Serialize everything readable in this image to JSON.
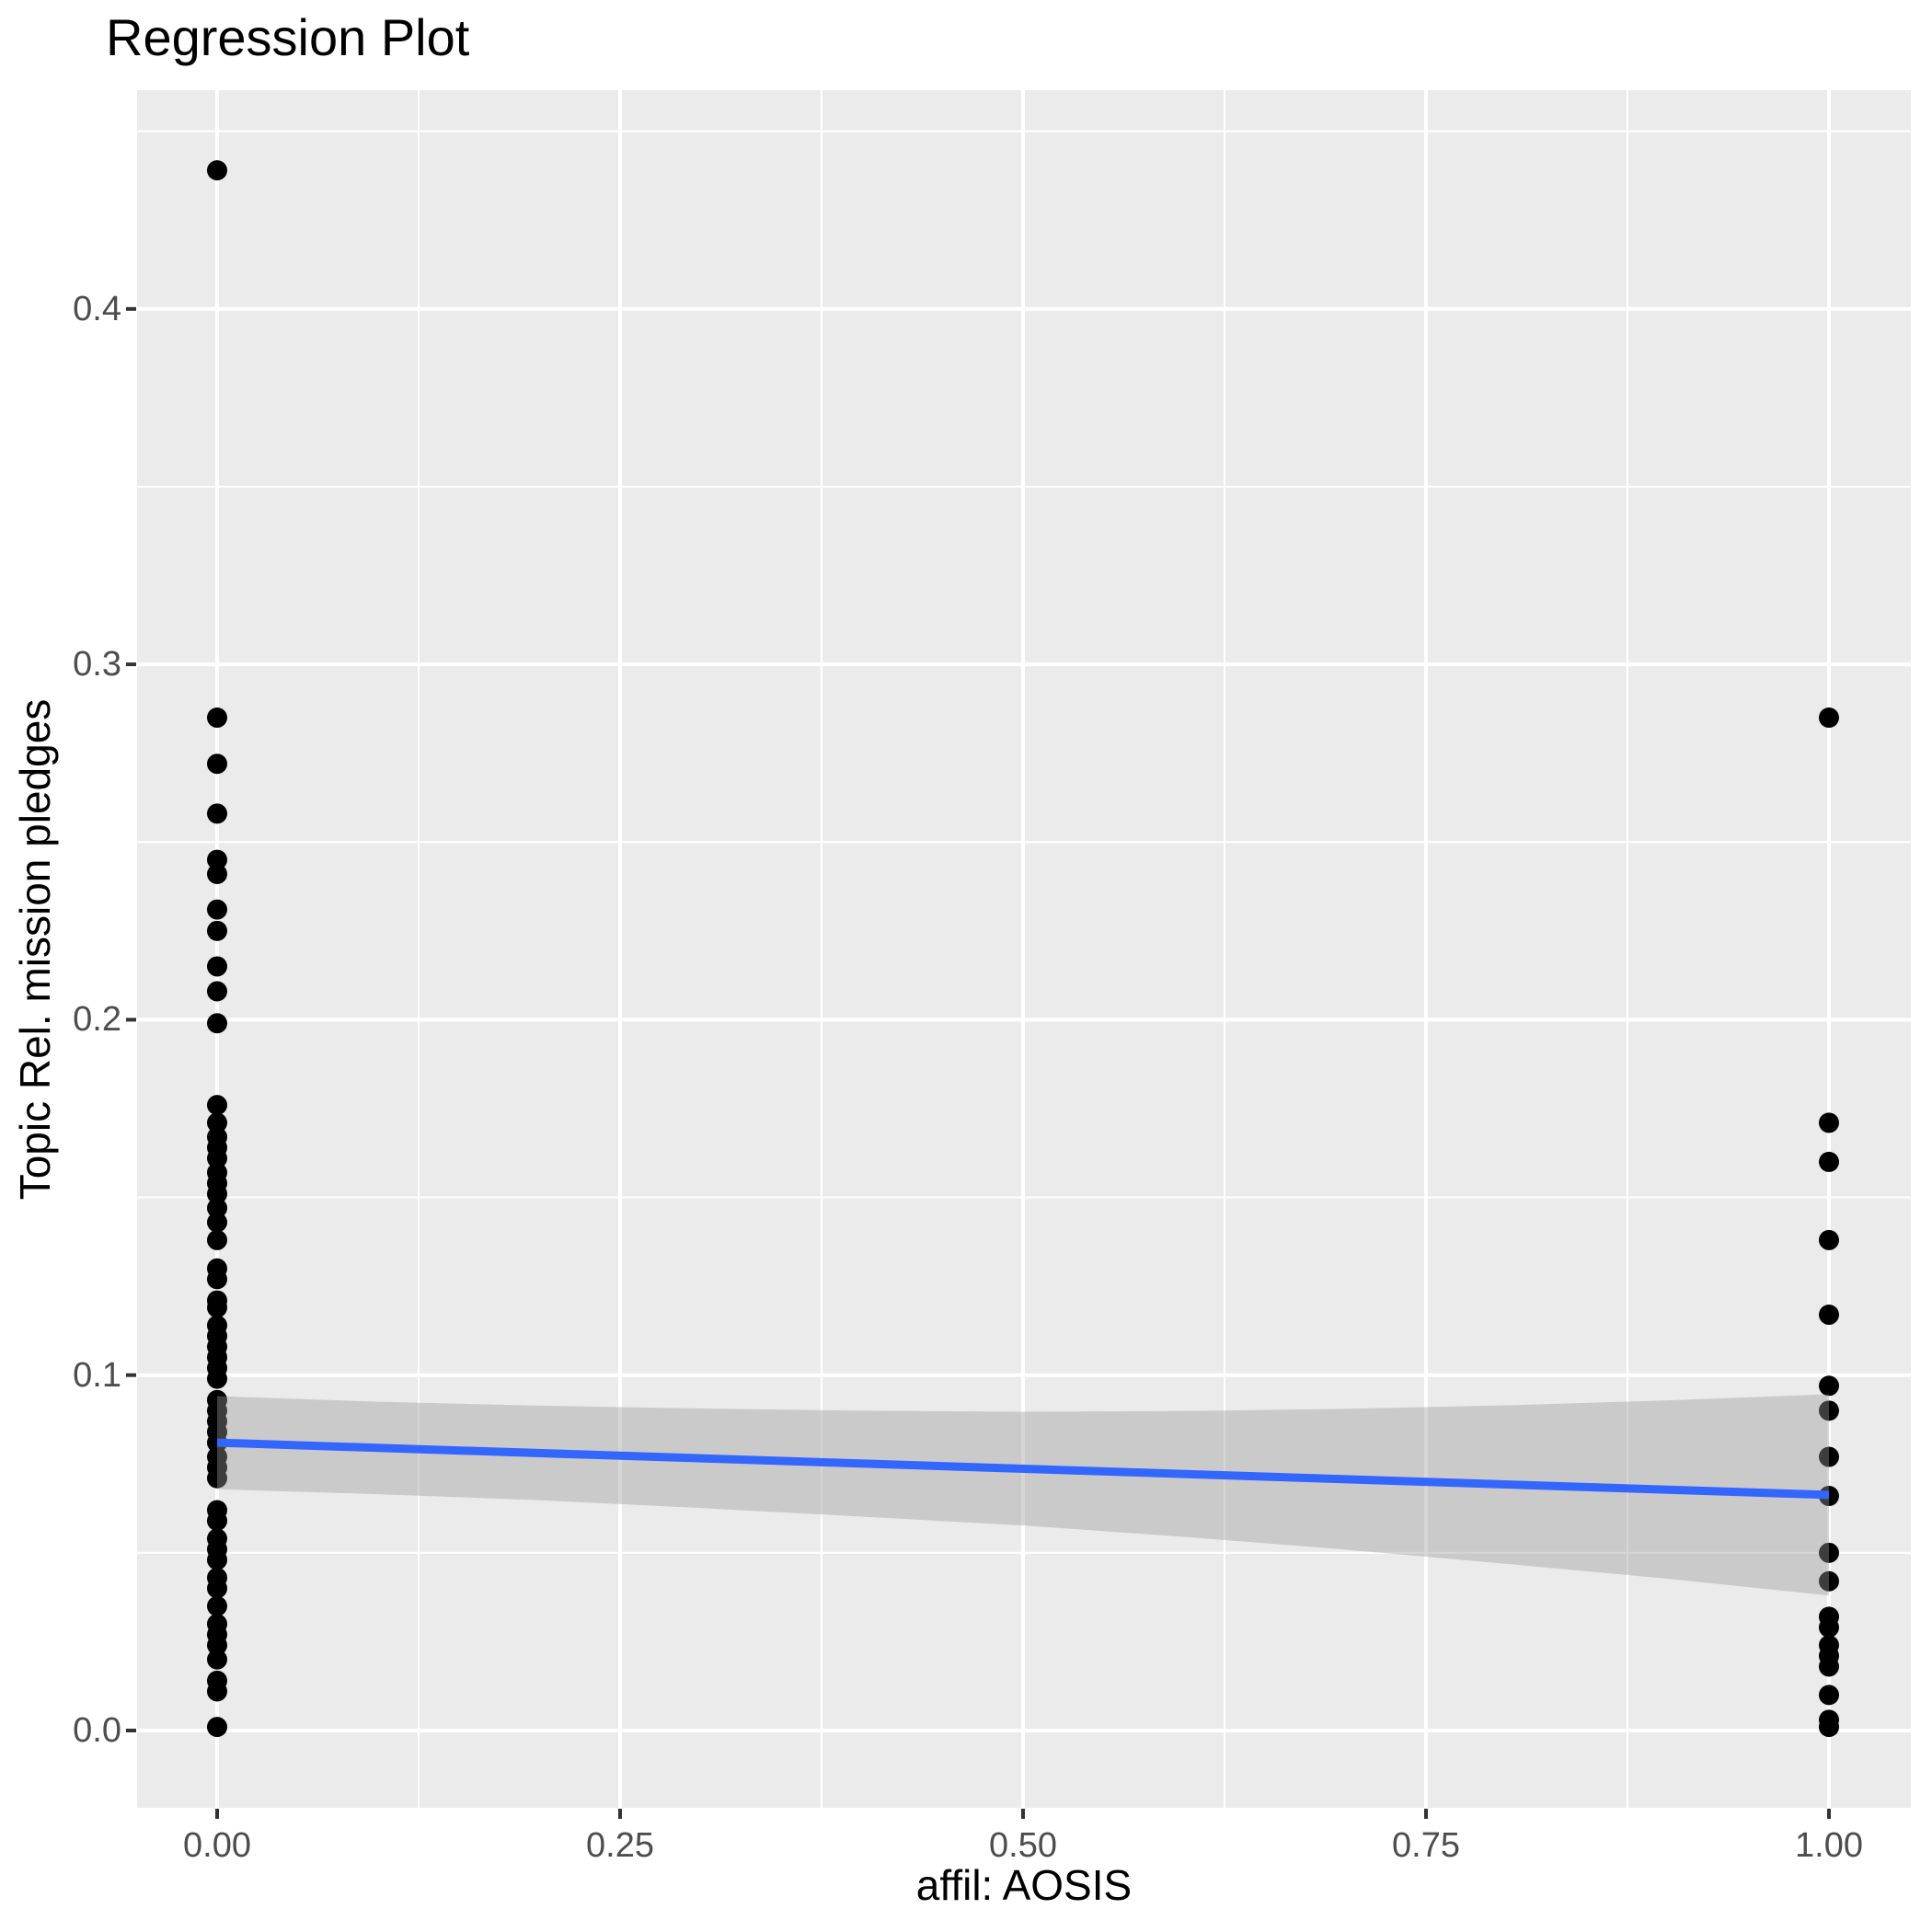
{
  "title": "Regression Plot",
  "axes": {
    "x": {
      "title": "affil: AOSIS",
      "tick_labels": [
        "0.00",
        "0.25",
        "0.50",
        "0.75",
        "1.00"
      ],
      "tick_values": [
        0,
        0.25,
        0.5,
        0.75,
        1
      ],
      "minor_values": [
        0.125,
        0.375,
        0.625,
        0.875
      ]
    },
    "y": {
      "title": "Topic Rel. mission pledges",
      "tick_labels": [
        "0.0",
        "0.1",
        "0.2",
        "0.3",
        "0.4"
      ],
      "tick_values": [
        0,
        0.1,
        0.2,
        0.3,
        0.4
      ],
      "minor_values": [
        0.05,
        0.15,
        0.25,
        0.35,
        0.45
      ]
    }
  },
  "chart_data": {
    "type": "scatter",
    "title": "Regression Plot",
    "xlabel": "affil: AOSIS",
    "ylabel": "Topic Rel. mission pledges",
    "xlim": [
      -0.05,
      1.05
    ],
    "ylim": [
      -0.022,
      0.462
    ],
    "grid": "white major and minor gridlines on gray panel",
    "legend": "none",
    "series": [
      {
        "name": "affil = 0",
        "x": 0,
        "y": [
          0.439,
          0.285,
          0.272,
          0.258,
          0.245,
          0.241,
          0.231,
          0.225,
          0.215,
          0.208,
          0.199,
          0.176,
          0.171,
          0.167,
          0.164,
          0.161,
          0.157,
          0.154,
          0.151,
          0.147,
          0.143,
          0.138,
          0.13,
          0.127,
          0.121,
          0.119,
          0.114,
          0.111,
          0.108,
          0.105,
          0.102,
          0.099,
          0.093,
          0.09,
          0.087,
          0.084,
          0.081,
          0.077,
          0.074,
          0.071,
          0.062,
          0.059,
          0.054,
          0.051,
          0.048,
          0.043,
          0.04,
          0.035,
          0.03,
          0.027,
          0.024,
          0.02,
          0.014,
          0.011,
          0.001
        ]
      },
      {
        "name": "affil = 1",
        "x": 1,
        "y": [
          0.285,
          0.171,
          0.16,
          0.138,
          0.117,
          0.097,
          0.09,
          0.077,
          0.066,
          0.05,
          0.042,
          0.032,
          0.029,
          0.024,
          0.021,
          0.018,
          0.01,
          0.003,
          0.001
        ]
      }
    ],
    "regression_line": {
      "x": [
        0,
        1
      ],
      "y": [
        0.081,
        0.0663
      ]
    },
    "confidence_band": {
      "x": [
        0,
        0.1,
        0.2,
        0.3,
        0.4,
        0.5,
        0.6,
        0.7,
        0.8,
        0.9,
        1.0
      ],
      "upper": [
        0.0941,
        0.0925,
        0.0914,
        0.0906,
        0.09,
        0.0897,
        0.0899,
        0.0905,
        0.0915,
        0.0929,
        0.0946
      ],
      "lower": [
        0.0679,
        0.0665,
        0.0648,
        0.0626,
        0.0602,
        0.0577,
        0.0545,
        0.0509,
        0.0469,
        0.0427,
        0.038
      ]
    }
  },
  "colors": {
    "panel_bg": "#EBEBEB",
    "grid": "#FFFFFF",
    "points": "#000000",
    "line": "#3366FF",
    "band": "rgba(153,153,153,0.4)",
    "tick_text": "#4D4D4D",
    "tick_mark": "#333333",
    "title_text": "#000000"
  }
}
